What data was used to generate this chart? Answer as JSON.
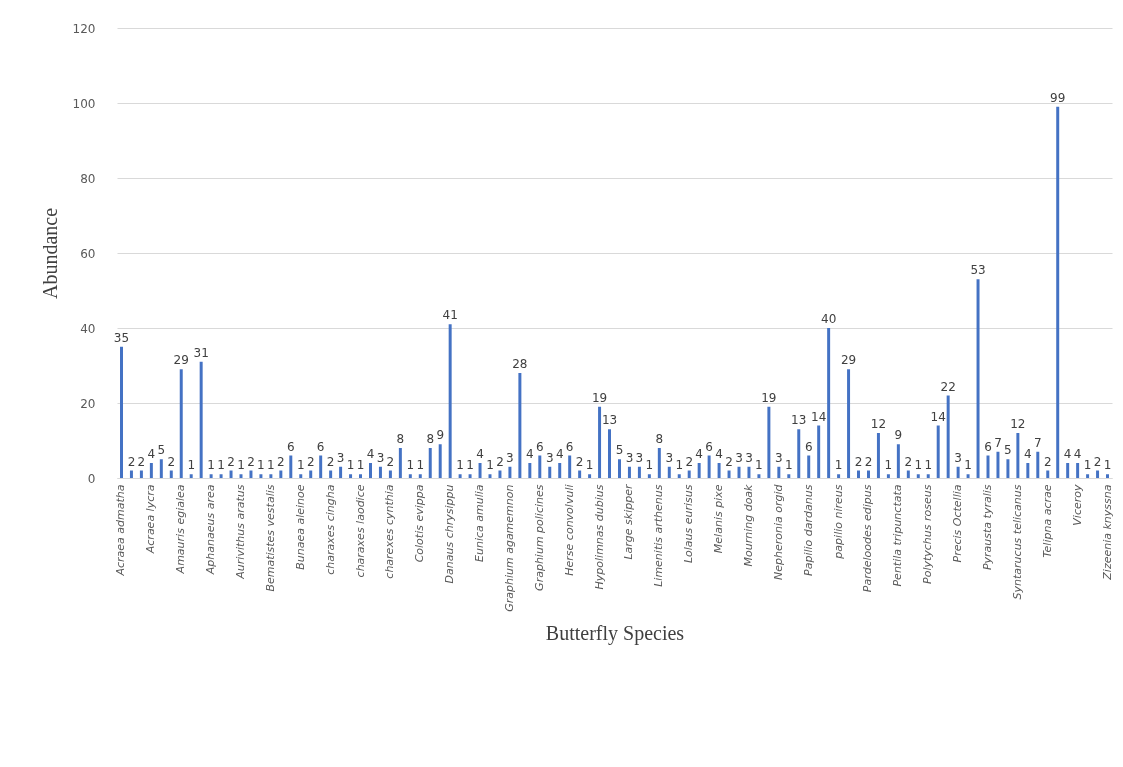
{
  "chart_data": {
    "type": "bar",
    "xlabel": "Butterfly Species",
    "ylabel": "Abundance",
    "categories": [
      "Acraea admatha",
      null,
      null,
      "Acraea lycra",
      null,
      null,
      "Amauris egialea",
      null,
      null,
      "Aphanaeus area",
      null,
      null,
      "Aurivithus aratus",
      null,
      null,
      "Bematistes vestalis",
      null,
      null,
      "Bunaea aleinoe",
      null,
      null,
      "charaxes cingha",
      null,
      null,
      "charaxes laodice",
      null,
      null,
      "charexes cynthia",
      null,
      null,
      "Colotis evippa",
      null,
      null,
      "Danaus chrysippu",
      null,
      null,
      "Eunica amulia",
      null,
      null,
      "Graphium agamemnon",
      null,
      null,
      "Graphium policines",
      null,
      null,
      "Herse convolvuli",
      null,
      null,
      "Hypolimnas dubius",
      null,
      null,
      "Large skipper",
      null,
      null,
      "Limenitis arthenus",
      null,
      null,
      "Lolaus eurisus",
      null,
      null,
      "Melanis pixe",
      null,
      null,
      "Mourning doak",
      null,
      null,
      "Nepheronia orgid",
      null,
      null,
      "Papilio dardanus",
      null,
      null,
      "papilio nireus",
      null,
      null,
      "Pardeloodes edipus",
      null,
      null,
      "Pentila tripunctata",
      null,
      null,
      "Polytychus roseus",
      null,
      null,
      "Precis Octellia",
      null,
      null,
      "Pyrausta tyralis",
      null,
      null,
      "Syntarucus telicanus",
      null,
      null,
      "Telipna acrae",
      null,
      null,
      "Viceroy",
      null,
      null,
      "Zizeenia knyssna"
    ],
    "values": [
      35,
      2,
      2,
      4,
      5,
      2,
      29,
      1,
      31,
      1,
      1,
      2,
      1,
      2,
      1,
      1,
      2,
      6,
      1,
      2,
      6,
      2,
      3,
      1,
      1,
      4,
      3,
      2,
      8,
      1,
      1,
      8,
      9,
      41,
      1,
      1,
      4,
      1,
      2,
      3,
      28,
      4,
      6,
      3,
      4,
      6,
      2,
      1,
      19,
      13,
      5,
      3,
      3,
      1,
      8,
      3,
      1,
      2,
      4,
      6,
      4,
      2,
      3,
      3,
      1,
      19,
      3,
      1,
      13,
      6,
      14,
      40,
      1,
      29,
      2,
      2,
      12,
      1,
      9,
      2,
      1,
      1,
      14,
      22,
      3,
      1,
      53,
      6,
      7,
      5,
      12,
      4,
      7,
      2,
      99,
      4,
      4,
      1,
      2,
      1
    ],
    "color": "#4472c4",
    "ylim": [
      0,
      120
    ],
    "yticks": [
      0,
      20,
      40,
      60,
      80,
      100,
      120
    ],
    "grid": "y",
    "data_labels": true
  }
}
